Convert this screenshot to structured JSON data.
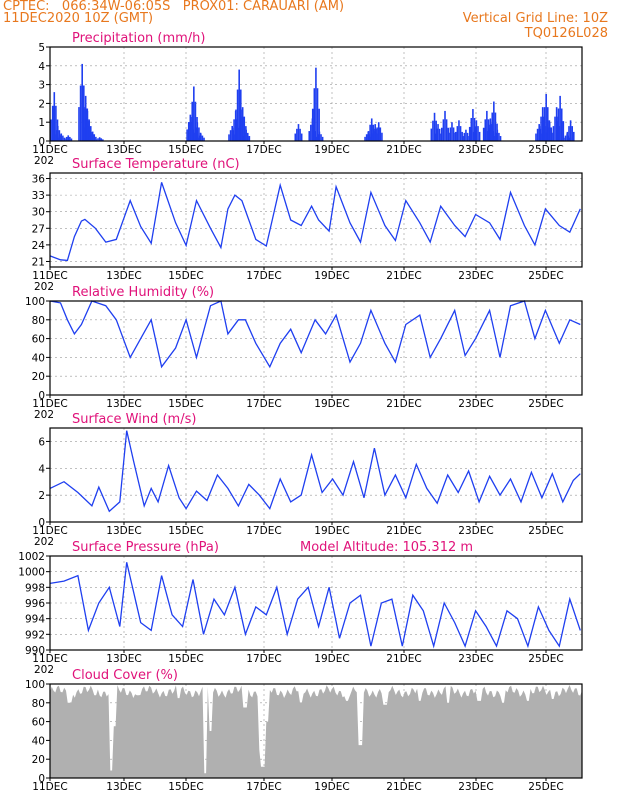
{
  "header": {
    "line1": "CPTEC:   066:34W-06:05S   PROX01: CARAUARI (AM)",
    "line2": "11DEC2020 10Z (GMT)",
    "right1": "Vertical Grid Line: 10Z",
    "right2": "TQ0126L028"
  },
  "x_labels": [
    "11DEC",
    "13DEC",
    "15DEC",
    "17DEC",
    "19DEC",
    "21DEC",
    "23DEC",
    "25DEC"
  ],
  "x_year_fragment": "202",
  "colors": {
    "line": "#1f3ff0",
    "fill_cloud": "#b0b0b0",
    "title": "#e0127a",
    "header": "#e8781e",
    "grid": "#9a9a9a"
  },
  "chart_data": [
    {
      "type": "bar",
      "title": "Precipitation (mm/h)",
      "ylim": [
        0,
        5
      ],
      "yticks": [
        0,
        1,
        2,
        3,
        4,
        5
      ],
      "x_unit": "days since 11DEC 10Z",
      "bursts": [
        {
          "x": 0.1,
          "value": 2.6
        },
        {
          "x": 0.2,
          "value": 0.8
        },
        {
          "x": 0.3,
          "value": 0.4
        },
        {
          "x": 0.5,
          "value": 0.3
        },
        {
          "x": 0.9,
          "value": 4.1
        },
        {
          "x": 1.0,
          "value": 2.4
        },
        {
          "x": 1.05,
          "value": 1.6
        },
        {
          "x": 1.1,
          "value": 1.1
        },
        {
          "x": 1.2,
          "value": 0.5
        },
        {
          "x": 1.4,
          "value": 0.2
        },
        {
          "x": 4.0,
          "value": 1.4
        },
        {
          "x": 4.1,
          "value": 2.9
        },
        {
          "x": 4.2,
          "value": 1.0
        },
        {
          "x": 4.3,
          "value": 0.4
        },
        {
          "x": 5.2,
          "value": 0.8
        },
        {
          "x": 5.3,
          "value": 1.6
        },
        {
          "x": 5.4,
          "value": 3.8
        },
        {
          "x": 5.5,
          "value": 1.8
        },
        {
          "x": 5.6,
          "value": 0.6
        },
        {
          "x": 7.1,
          "value": 0.9
        },
        {
          "x": 7.5,
          "value": 1.2
        },
        {
          "x": 7.6,
          "value": 3.9
        },
        {
          "x": 7.7,
          "value": 0.5
        },
        {
          "x": 9.1,
          "value": 0.5
        },
        {
          "x": 9.2,
          "value": 1.2
        },
        {
          "x": 9.3,
          "value": 0.9
        },
        {
          "x": 9.4,
          "value": 1.0
        },
        {
          "x": 11.0,
          "value": 1.5
        },
        {
          "x": 11.1,
          "value": 0.9
        },
        {
          "x": 11.3,
          "value": 1.6
        },
        {
          "x": 11.5,
          "value": 1.0
        },
        {
          "x": 11.7,
          "value": 1.1
        },
        {
          "x": 11.9,
          "value": 0.6
        },
        {
          "x": 12.1,
          "value": 1.7
        },
        {
          "x": 12.2,
          "value": 1.1
        },
        {
          "x": 12.5,
          "value": 1.6
        },
        {
          "x": 12.6,
          "value": 1.2
        },
        {
          "x": 12.7,
          "value": 2.1
        },
        {
          "x": 12.8,
          "value": 0.6
        },
        {
          "x": 14.0,
          "value": 0.9
        },
        {
          "x": 14.1,
          "value": 1.8
        },
        {
          "x": 14.2,
          "value": 2.5
        },
        {
          "x": 14.3,
          "value": 1.0
        },
        {
          "x": 14.5,
          "value": 1.8
        },
        {
          "x": 14.6,
          "value": 2.4
        },
        {
          "x": 14.8,
          "value": 0.4
        },
        {
          "x": 14.9,
          "value": 1.1
        }
      ]
    },
    {
      "type": "line",
      "title": "Surface Temperature (nC)",
      "ylim": [
        20,
        37
      ],
      "yticks": [
        21,
        24,
        27,
        30,
        33,
        36
      ],
      "x": [
        0,
        0.3,
        0.5,
        0.7,
        0.9,
        1.0,
        1.3,
        1.6,
        1.9,
        2.3,
        2.6,
        2.9,
        3.2,
        3.6,
        3.9,
        4.2,
        4.6,
        4.9,
        5.1,
        5.3,
        5.5,
        5.9,
        6.2,
        6.6,
        6.9,
        7.2,
        7.5,
        7.7,
        8.0,
        8.2,
        8.6,
        8.9,
        9.2,
        9.6,
        9.9,
        10.2,
        10.6,
        10.9,
        11.2,
        11.6,
        11.9,
        12.2,
        12.6,
        12.9,
        13.2,
        13.6,
        13.9,
        14.2,
        14.6,
        14.9,
        15.2
      ],
      "y": [
        22,
        21.3,
        21.2,
        25.5,
        28.3,
        28.6,
        27,
        24.5,
        25,
        32,
        27.3,
        24.3,
        35.3,
        28,
        23.9,
        32,
        27,
        23.5,
        30.5,
        33,
        32,
        25,
        23.8,
        34.8,
        28.5,
        27.5,
        31,
        28.5,
        26.5,
        34.5,
        28,
        24.5,
        33.5,
        27.5,
        24.8,
        32,
        28,
        24.5,
        31,
        27.5,
        25.5,
        29.5,
        28,
        25,
        33.5,
        27.5,
        24,
        30.5,
        27.5,
        26.3,
        30.5
      ]
    },
    {
      "type": "line",
      "title": "Relative Humidity (%)",
      "ylim": [
        0,
        100
      ],
      "yticks": [
        0,
        20,
        40,
        60,
        80,
        100
      ],
      "x": [
        0,
        0.3,
        0.5,
        0.7,
        0.9,
        1.2,
        1.6,
        1.9,
        2.3,
        2.6,
        2.9,
        3.2,
        3.6,
        3.9,
        4.2,
        4.6,
        4.9,
        5.1,
        5.4,
        5.6,
        5.9,
        6.3,
        6.6,
        6.9,
        7.2,
        7.6,
        7.9,
        8.2,
        8.6,
        8.9,
        9.2,
        9.6,
        9.9,
        10.2,
        10.6,
        10.9,
        11.2,
        11.6,
        11.9,
        12.2,
        12.6,
        12.9,
        13.2,
        13.6,
        13.9,
        14.2,
        14.6,
        14.9,
        15.2
      ],
      "y": [
        100,
        98,
        80,
        65,
        75,
        100,
        95,
        80,
        40,
        60,
        80,
        30,
        50,
        80,
        40,
        95,
        100,
        65,
        80,
        80,
        55,
        30,
        55,
        70,
        45,
        80,
        65,
        85,
        35,
        55,
        90,
        55,
        35,
        75,
        85,
        40,
        60,
        90,
        42,
        60,
        90,
        40,
        95,
        100,
        60,
        90,
        55,
        80,
        75
      ]
    },
    {
      "type": "line",
      "title": "Surface Wind (m/s)",
      "ylim": [
        0,
        7
      ],
      "yticks": [
        0,
        2,
        4,
        6
      ],
      "x": [
        0,
        0.4,
        0.8,
        1.2,
        1.4,
        1.7,
        2.0,
        2.2,
        2.4,
        2.7,
        2.9,
        3.1,
        3.4,
        3.7,
        3.9,
        4.2,
        4.5,
        4.8,
        5.1,
        5.4,
        5.7,
        6.0,
        6.3,
        6.6,
        6.9,
        7.2,
        7.5,
        7.8,
        8.1,
        8.4,
        8.7,
        9.0,
        9.3,
        9.6,
        9.9,
        10.2,
        10.5,
        10.8,
        11.1,
        11.4,
        11.7,
        12.0,
        12.3,
        12.6,
        12.9,
        13.2,
        13.5,
        13.8,
        14.1,
        14.4,
        14.7,
        15.0,
        15.2
      ],
      "y": [
        2.5,
        3.0,
        2.2,
        1.2,
        2.6,
        0.8,
        1.5,
        6.8,
        4.5,
        1.2,
        2.5,
        1.5,
        4.2,
        1.8,
        1.0,
        2.3,
        1.6,
        3.5,
        2.5,
        1.2,
        2.8,
        2.0,
        1.0,
        3.2,
        1.5,
        2.0,
        5.0,
        2.2,
        3.2,
        2.0,
        4.5,
        1.8,
        5.5,
        2.0,
        3.5,
        1.8,
        4.3,
        2.5,
        1.4,
        3.5,
        2.2,
        3.8,
        1.5,
        3.4,
        2.0,
        3.2,
        1.5,
        3.7,
        1.8,
        3.6,
        1.5,
        3.1,
        3.6
      ]
    },
    {
      "type": "line",
      "title": "Surface Pressure (hPa)",
      "annotation": "Model Altitude: 105.312 m",
      "ylim": [
        990,
        1002
      ],
      "yticks": [
        990,
        992,
        994,
        996,
        998,
        1000,
        1002
      ],
      "x": [
        0,
        0.4,
        0.8,
        1.1,
        1.4,
        1.7,
        2.0,
        2.2,
        2.6,
        2.9,
        3.2,
        3.5,
        3.8,
        4.1,
        4.4,
        4.7,
        5.0,
        5.3,
        5.6,
        5.9,
        6.2,
        6.5,
        6.8,
        7.1,
        7.4,
        7.7,
        8.0,
        8.3,
        8.6,
        8.9,
        9.2,
        9.5,
        9.8,
        10.1,
        10.4,
        10.7,
        11.0,
        11.3,
        11.6,
        11.9,
        12.2,
        12.5,
        12.8,
        13.1,
        13.4,
        13.7,
        14.0,
        14.3,
        14.6,
        14.9,
        15.2
      ],
      "y": [
        998.5,
        998.8,
        999.5,
        992.5,
        996.0,
        998.0,
        993.0,
        1001.2,
        993.5,
        992.5,
        999.5,
        994.5,
        993.0,
        999.0,
        992.0,
        996.5,
        994.5,
        998.0,
        992.0,
        995.5,
        994.5,
        998.0,
        992.0,
        996.5,
        998.0,
        993.0,
        998.0,
        991.5,
        996.0,
        997.0,
        990.5,
        996.0,
        996.5,
        990.5,
        997.0,
        995.0,
        990.5,
        996.0,
        993.5,
        990.5,
        995.0,
        993.0,
        990.5,
        995.0,
        994.0,
        990.5,
        995.5,
        992.5,
        990.5,
        996.5,
        992.5
      ]
    },
    {
      "type": "area",
      "title": "Cloud Cover (%)",
      "ylim": [
        0,
        100
      ],
      "yticks": [
        0,
        20,
        40,
        60,
        80,
        100
      ],
      "base_value": 92,
      "dips": [
        {
          "x": 0.55,
          "value": 80
        },
        {
          "x": 1.3,
          "value": 88
        },
        {
          "x": 1.75,
          "value": 8
        },
        {
          "x": 1.85,
          "value": 55
        },
        {
          "x": 2.5,
          "value": 88
        },
        {
          "x": 3.7,
          "value": 85
        },
        {
          "x": 4.45,
          "value": 5
        },
        {
          "x": 4.6,
          "value": 50
        },
        {
          "x": 5.6,
          "value": 75
        },
        {
          "x": 6.05,
          "value": 30
        },
        {
          "x": 6.1,
          "value": 12
        },
        {
          "x": 6.2,
          "value": 60
        },
        {
          "x": 7.2,
          "value": 80
        },
        {
          "x": 8.5,
          "value": 82
        },
        {
          "x": 8.9,
          "value": 35
        },
        {
          "x": 9.6,
          "value": 78
        },
        {
          "x": 10.6,
          "value": 82
        },
        {
          "x": 11.4,
          "value": 80
        },
        {
          "x": 12.3,
          "value": 82
        },
        {
          "x": 13.0,
          "value": 80
        },
        {
          "x": 13.7,
          "value": 82
        },
        {
          "x": 14.4,
          "value": 84
        }
      ]
    }
  ]
}
